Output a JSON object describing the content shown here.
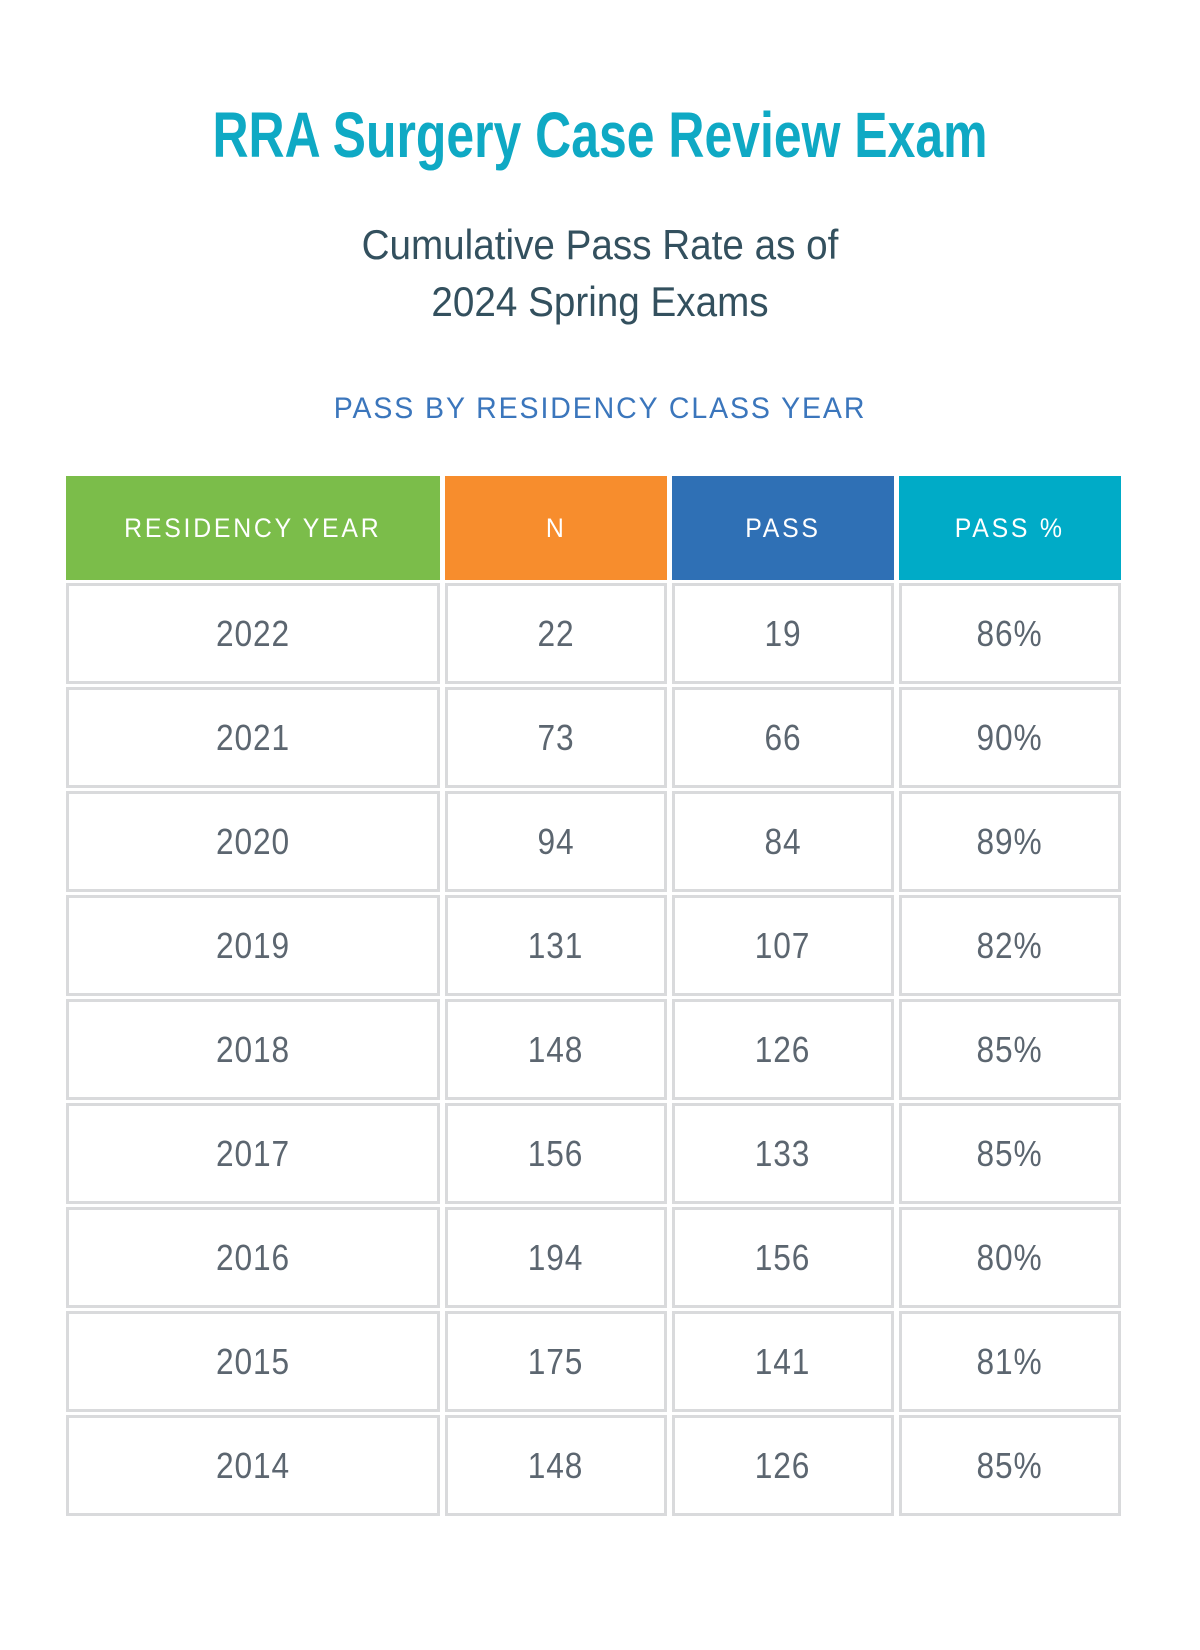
{
  "page_title": "RRA Surgery Case Review Exam",
  "subtitle": {
    "line1": "Cumulative Pass Rate as of",
    "line2": "2024 Spring Exams"
  },
  "section_heading": "PASS BY RESIDENCY CLASS YEAR",
  "colors": {
    "title_teal": "#0FA9C4",
    "subtitle_slate": "#33505E",
    "heading_blue": "#3B76BC",
    "header_green": "#7BBD4A",
    "header_orange": "#F78D2D",
    "header_blue": "#2F70B5",
    "header_teal": "#00ABC7",
    "cell_text": "#5C6670",
    "cell_border": "#D9DADC"
  },
  "chart_data": {
    "type": "table",
    "title": "RRA Surgery Case Review Exam",
    "subtitle": "Cumulative Pass Rate as of 2024 Spring Exams",
    "section": "PASS BY RESIDENCY CLASS YEAR",
    "columns": [
      "RESIDENCY YEAR",
      "N",
      "PASS",
      "PASS %"
    ],
    "column_colors": [
      "#7BBD4A",
      "#F78D2D",
      "#2F70B5",
      "#00ABC7"
    ],
    "rows": [
      [
        "2022",
        "22",
        "19",
        "86%"
      ],
      [
        "2021",
        "73",
        "66",
        "90%"
      ],
      [
        "2020",
        "94",
        "84",
        "89%"
      ],
      [
        "2019",
        "131",
        "107",
        "82%"
      ],
      [
        "2018",
        "148",
        "126",
        "85%"
      ],
      [
        "2017",
        "156",
        "133",
        "85%"
      ],
      [
        "2016",
        "194",
        "156",
        "80%"
      ],
      [
        "2015",
        "175",
        "141",
        "81%"
      ],
      [
        "2014",
        "148",
        "126",
        "85%"
      ]
    ]
  }
}
